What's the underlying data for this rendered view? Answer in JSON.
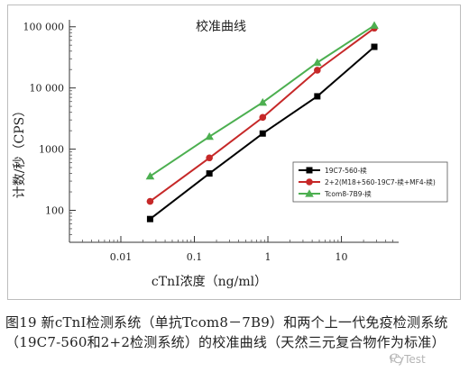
{
  "chart_data": {
    "type": "line",
    "title": "校准曲线",
    "xlabel": "cTnI浓度（ng/ml）",
    "ylabel": "计数/秒（CPS）",
    "x_scale": "log",
    "y_scale": "log",
    "xlim": [
      0.002,
      60
    ],
    "ylim": [
      30,
      130000
    ],
    "x_ticks": [
      {
        "value": 0.01,
        "label": "0.01"
      },
      {
        "value": 0.1,
        "label": "0.1"
      },
      {
        "value": 1,
        "label": "1"
      },
      {
        "value": 10,
        "label": "10"
      }
    ],
    "y_ticks": [
      {
        "value": 100,
        "label": "100"
      },
      {
        "value": 1000,
        "label": "1000"
      },
      {
        "value": 10000,
        "label": "10 000"
      },
      {
        "value": 100000,
        "label": "100 000"
      }
    ],
    "legend_position": "right",
    "series": [
      {
        "name": "19C7-560-椟",
        "color": "#000000",
        "marker": "square",
        "x": [
          0.025,
          0.16,
          0.85,
          4.7,
          28
        ],
        "y": [
          72,
          400,
          1800,
          7300,
          47000
        ]
      },
      {
        "name": "2+2(M18+560-19C7-椟+MF4-椟)",
        "color": "#c62828",
        "marker": "circle",
        "x": [
          0.025,
          0.16,
          0.85,
          4.7,
          28
        ],
        "y": [
          140,
          720,
          3300,
          19500,
          95000
        ]
      },
      {
        "name": "Tcom8-7B9-椟",
        "color": "#4caf50",
        "marker": "triangle",
        "x": [
          0.025,
          0.16,
          0.85,
          4.7,
          28
        ],
        "y": [
          360,
          1600,
          5800,
          26000,
          105000
        ]
      }
    ]
  },
  "caption": "图19 新cTnI检测系统（单抗Tcom8－7B9）和两个上一代免疫检测系统（19C7-560和2+2检测系统）的校准曲线（天然三元复合物作为标准）",
  "watermark": "HyTest"
}
